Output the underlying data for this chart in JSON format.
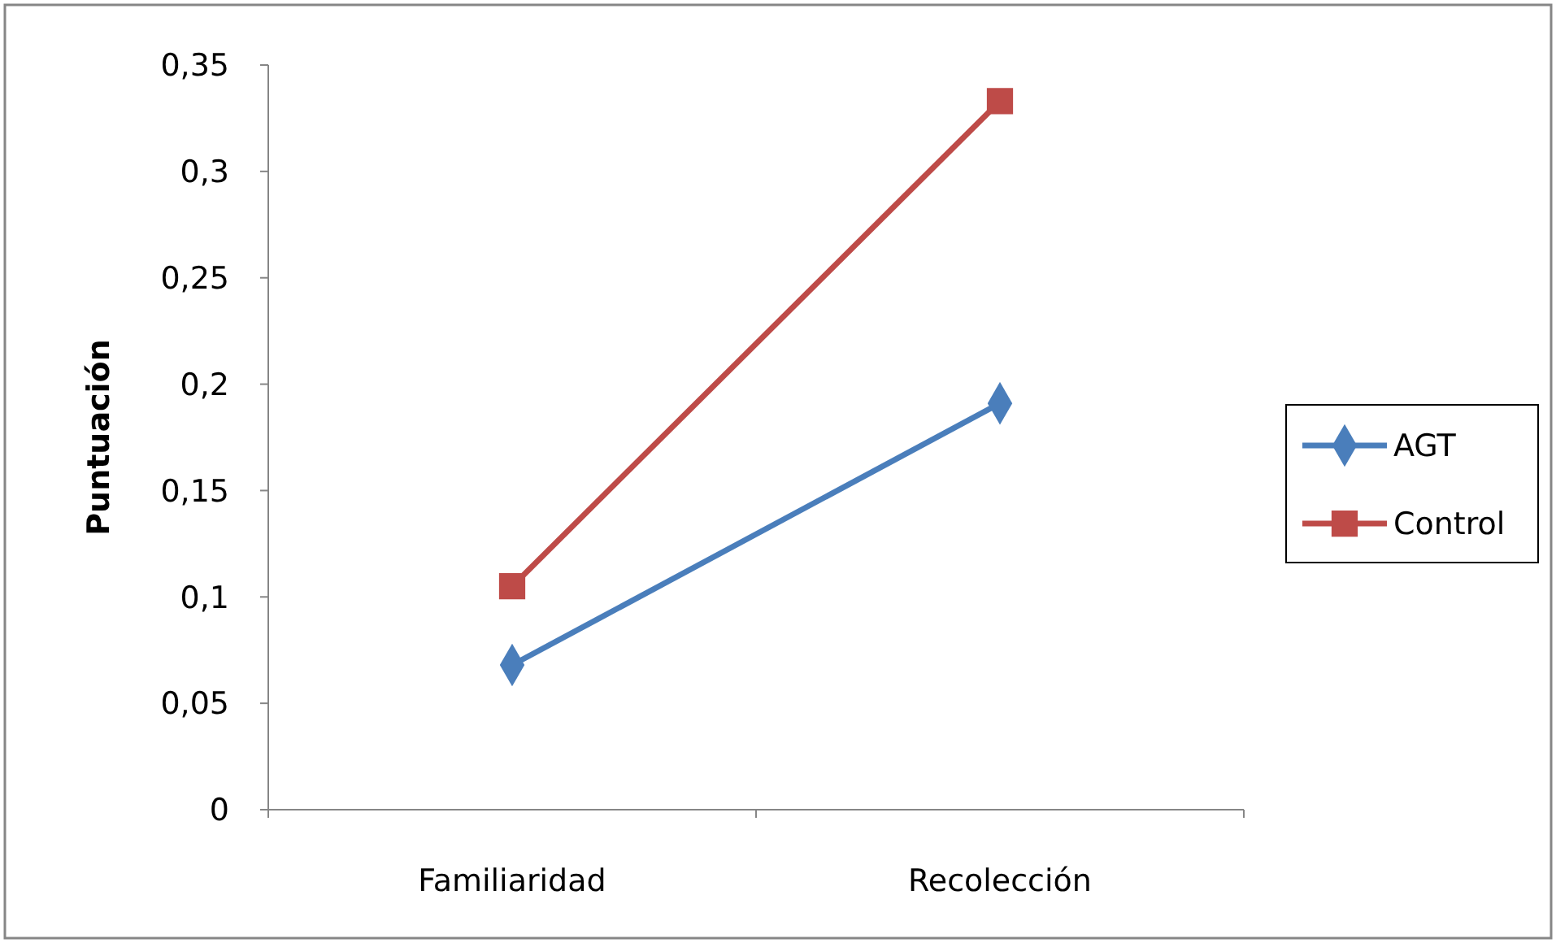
{
  "chart_data": {
    "type": "line",
    "ylabel": "Puntuación",
    "categories": [
      "Familiaridad",
      "Recolección"
    ],
    "series": [
      {
        "name": "AGT",
        "color": "#4a7ebb",
        "values": [
          0.068,
          0.191
        ],
        "marker": "diamond"
      },
      {
        "name": "Control",
        "color": "#be4b48",
        "values": [
          0.105,
          0.333
        ],
        "marker": "square"
      }
    ],
    "ylim": [
      0,
      0.35
    ],
    "yticks": [
      0,
      {
        "value": 0.05,
        "label": "0,05"
      },
      {
        "value": 0.1,
        "label": "0,1"
      },
      {
        "value": 0.15,
        "label": "0,15"
      },
      {
        "value": 0.2,
        "label": "0,2"
      },
      {
        "value": 0.25,
        "label": "0,25"
      },
      {
        "value": 0.3,
        "label": "0,3"
      },
      {
        "value": 0.35,
        "label": "0,35"
      }
    ],
    "grid": false,
    "legend": "right",
    "line_style": "solid"
  }
}
